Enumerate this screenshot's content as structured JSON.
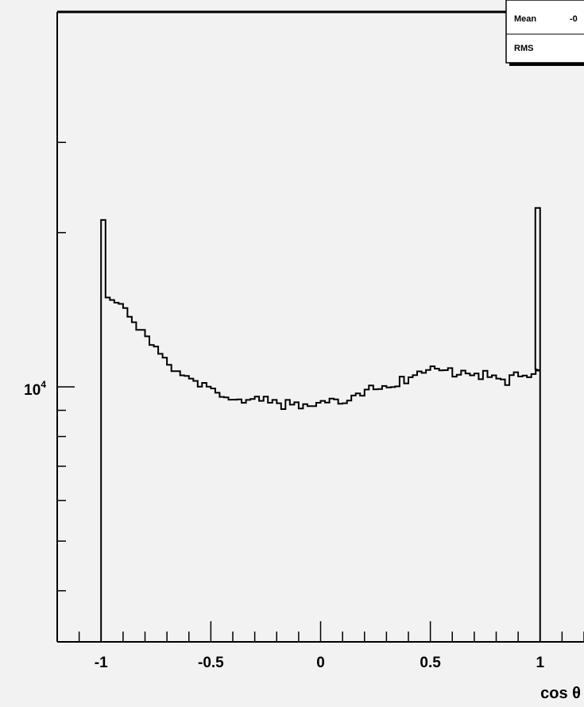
{
  "chart_data": {
    "type": "histogram",
    "xlabel": "cos θ",
    "ylabel": "",
    "xlim": [
      -1.2,
      1.2
    ],
    "ylim": [
      2200,
      50000
    ],
    "yscale": "log",
    "grid": false,
    "colors": {
      "background": "#f2f2f2",
      "line": "#000000",
      "stats_box": "#ffffff"
    },
    "x_ticks": [
      {
        "value": -1,
        "label": "-1"
      },
      {
        "value": -0.5,
        "label": "-0.5"
      },
      {
        "value": 0,
        "label": "0"
      },
      {
        "value": 0.5,
        "label": "0.5"
      },
      {
        "value": 1,
        "label": "1"
      }
    ],
    "y_tick_label": {
      "value": 10000,
      "base": "10",
      "exponent": "4"
    },
    "y_minor_ticks": [
      3000,
      4000,
      5000,
      6000,
      7000,
      8000,
      9000,
      20000,
      30000
    ],
    "stats_box": {
      "entries": [
        {
          "label": "Mean",
          "value": "-0"
        },
        {
          "label": "RMS",
          "value": ""
        }
      ]
    },
    "bins": {
      "x_start": -1.0,
      "x_end": 1.0,
      "values": [
        21170,
        14940,
        14780,
        14600,
        14520,
        14250,
        13700,
        13370,
        12920,
        12920,
        12550,
        12070,
        11990,
        11600,
        11400,
        11040,
        10730,
        10730,
        10530,
        10500,
        10380,
        10270,
        10010,
        10180,
        10010,
        9930,
        9740,
        9560,
        9540,
        9440,
        9440,
        9450,
        9310,
        9430,
        9470,
        9570,
        9390,
        9570,
        9310,
        9430,
        9290,
        9050,
        9430,
        9230,
        9330,
        9070,
        9250,
        9170,
        9170,
        9310,
        9390,
        9320,
        9490,
        9450,
        9270,
        9290,
        9400,
        9620,
        9710,
        9610,
        9880,
        10060,
        9890,
        9900,
        10040,
        9970,
        9990,
        10020,
        10470,
        10160,
        10440,
        10540,
        10720,
        10650,
        10790,
        10970,
        10850,
        10770,
        10780,
        10880,
        10470,
        10560,
        10760,
        10620,
        10530,
        10620,
        10350,
        10750,
        10450,
        10530,
        10380,
        10340,
        10080,
        10540,
        10680,
        10480,
        10520,
        10440,
        10590,
        10760
      ],
      "right_edge_spike": 22350,
      "right_edge_value": 10830
    }
  }
}
